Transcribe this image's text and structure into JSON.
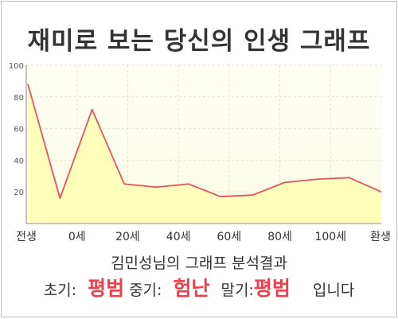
{
  "title": "재미로 보는 당신의 인생 그래프",
  "summary": "김민성님의 그래프 분석결과",
  "result": {
    "early_label": "초기:",
    "early_value": "평범",
    "middle_label": "중기:",
    "middle_value": "험난",
    "late_label": "말기:",
    "late_value": "평범",
    "ending": "입니다"
  },
  "colors": {
    "line": "#e8525e",
    "area": "#ffffb8",
    "highlight": "#e8424f"
  },
  "chart_data": {
    "type": "area",
    "title": "재미로 보는 당신의 인생 그래프",
    "xlabel": "",
    "ylabel": "",
    "ylim": [
      0,
      100
    ],
    "y_ticks": [
      20,
      40,
      60,
      80,
      100
    ],
    "x_ticks": [
      "전생",
      "0세",
      "20세",
      "40세",
      "60세",
      "80세",
      "100세",
      "환생"
    ],
    "grid": true,
    "series": [
      {
        "values": [
          88,
          16,
          72,
          25,
          23,
          25,
          17,
          18,
          26,
          28,
          29,
          20
        ]
      }
    ]
  }
}
